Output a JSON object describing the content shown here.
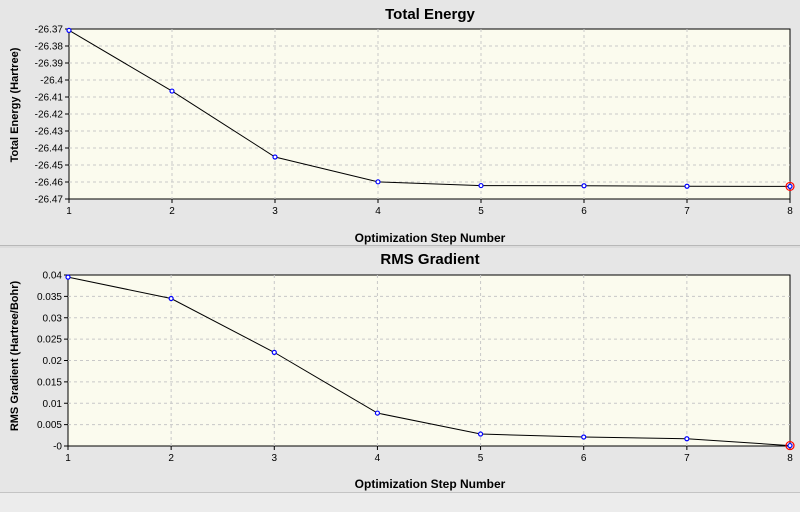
{
  "chart_data": [
    {
      "type": "line",
      "title": "Total Energy",
      "xlabel": "Optimization Step Number",
      "ylabel": "Total Energy (Hartree)",
      "x": [
        1,
        2,
        3,
        4,
        5,
        6,
        7,
        8
      ],
      "y": [
        -26.3708,
        -26.4065,
        -26.4453,
        -26.4599,
        -26.4621,
        -26.4622,
        -26.4625,
        -26.4626
      ],
      "xlim": [
        1,
        8
      ],
      "ylim": [
        -26.47,
        -26.37
      ],
      "xticks": [
        "1",
        "2",
        "3",
        "4",
        "5",
        "6",
        "7",
        "8"
      ],
      "yticks": [
        "-26.37",
        "-26.38",
        "-26.39",
        "-26.4",
        "-26.41",
        "-26.42",
        "-26.43",
        "-26.44",
        "-26.45",
        "-26.46",
        "-26.47"
      ],
      "grid": true
    },
    {
      "type": "line",
      "title": "RMS Gradient",
      "xlabel": "Optimization Step Number",
      "ylabel": "RMS Gradient (Hartree/Bohr)",
      "x": [
        1,
        2,
        3,
        4,
        5,
        6,
        7,
        8
      ],
      "y": [
        0.0395,
        0.0345,
        0.0219,
        0.0077,
        0.0028,
        0.0021,
        0.0017,
        0.0001
      ],
      "xlim": [
        1,
        8
      ],
      "ylim": [
        0,
        0.04
      ],
      "xticks": [
        "1",
        "2",
        "3",
        "4",
        "5",
        "6",
        "7",
        "8"
      ],
      "yticks": [
        "0.04",
        "0.035",
        "0.03",
        "0.025",
        "0.02",
        "0.015",
        "0.01",
        "0.005",
        "-0"
      ],
      "grid": true
    }
  ],
  "colors": {
    "plot_bg": "#fbfbee",
    "grid": "#c8c8c8",
    "line": "#000000",
    "marker": "#0000ff",
    "last_marker": "#ff0000"
  }
}
